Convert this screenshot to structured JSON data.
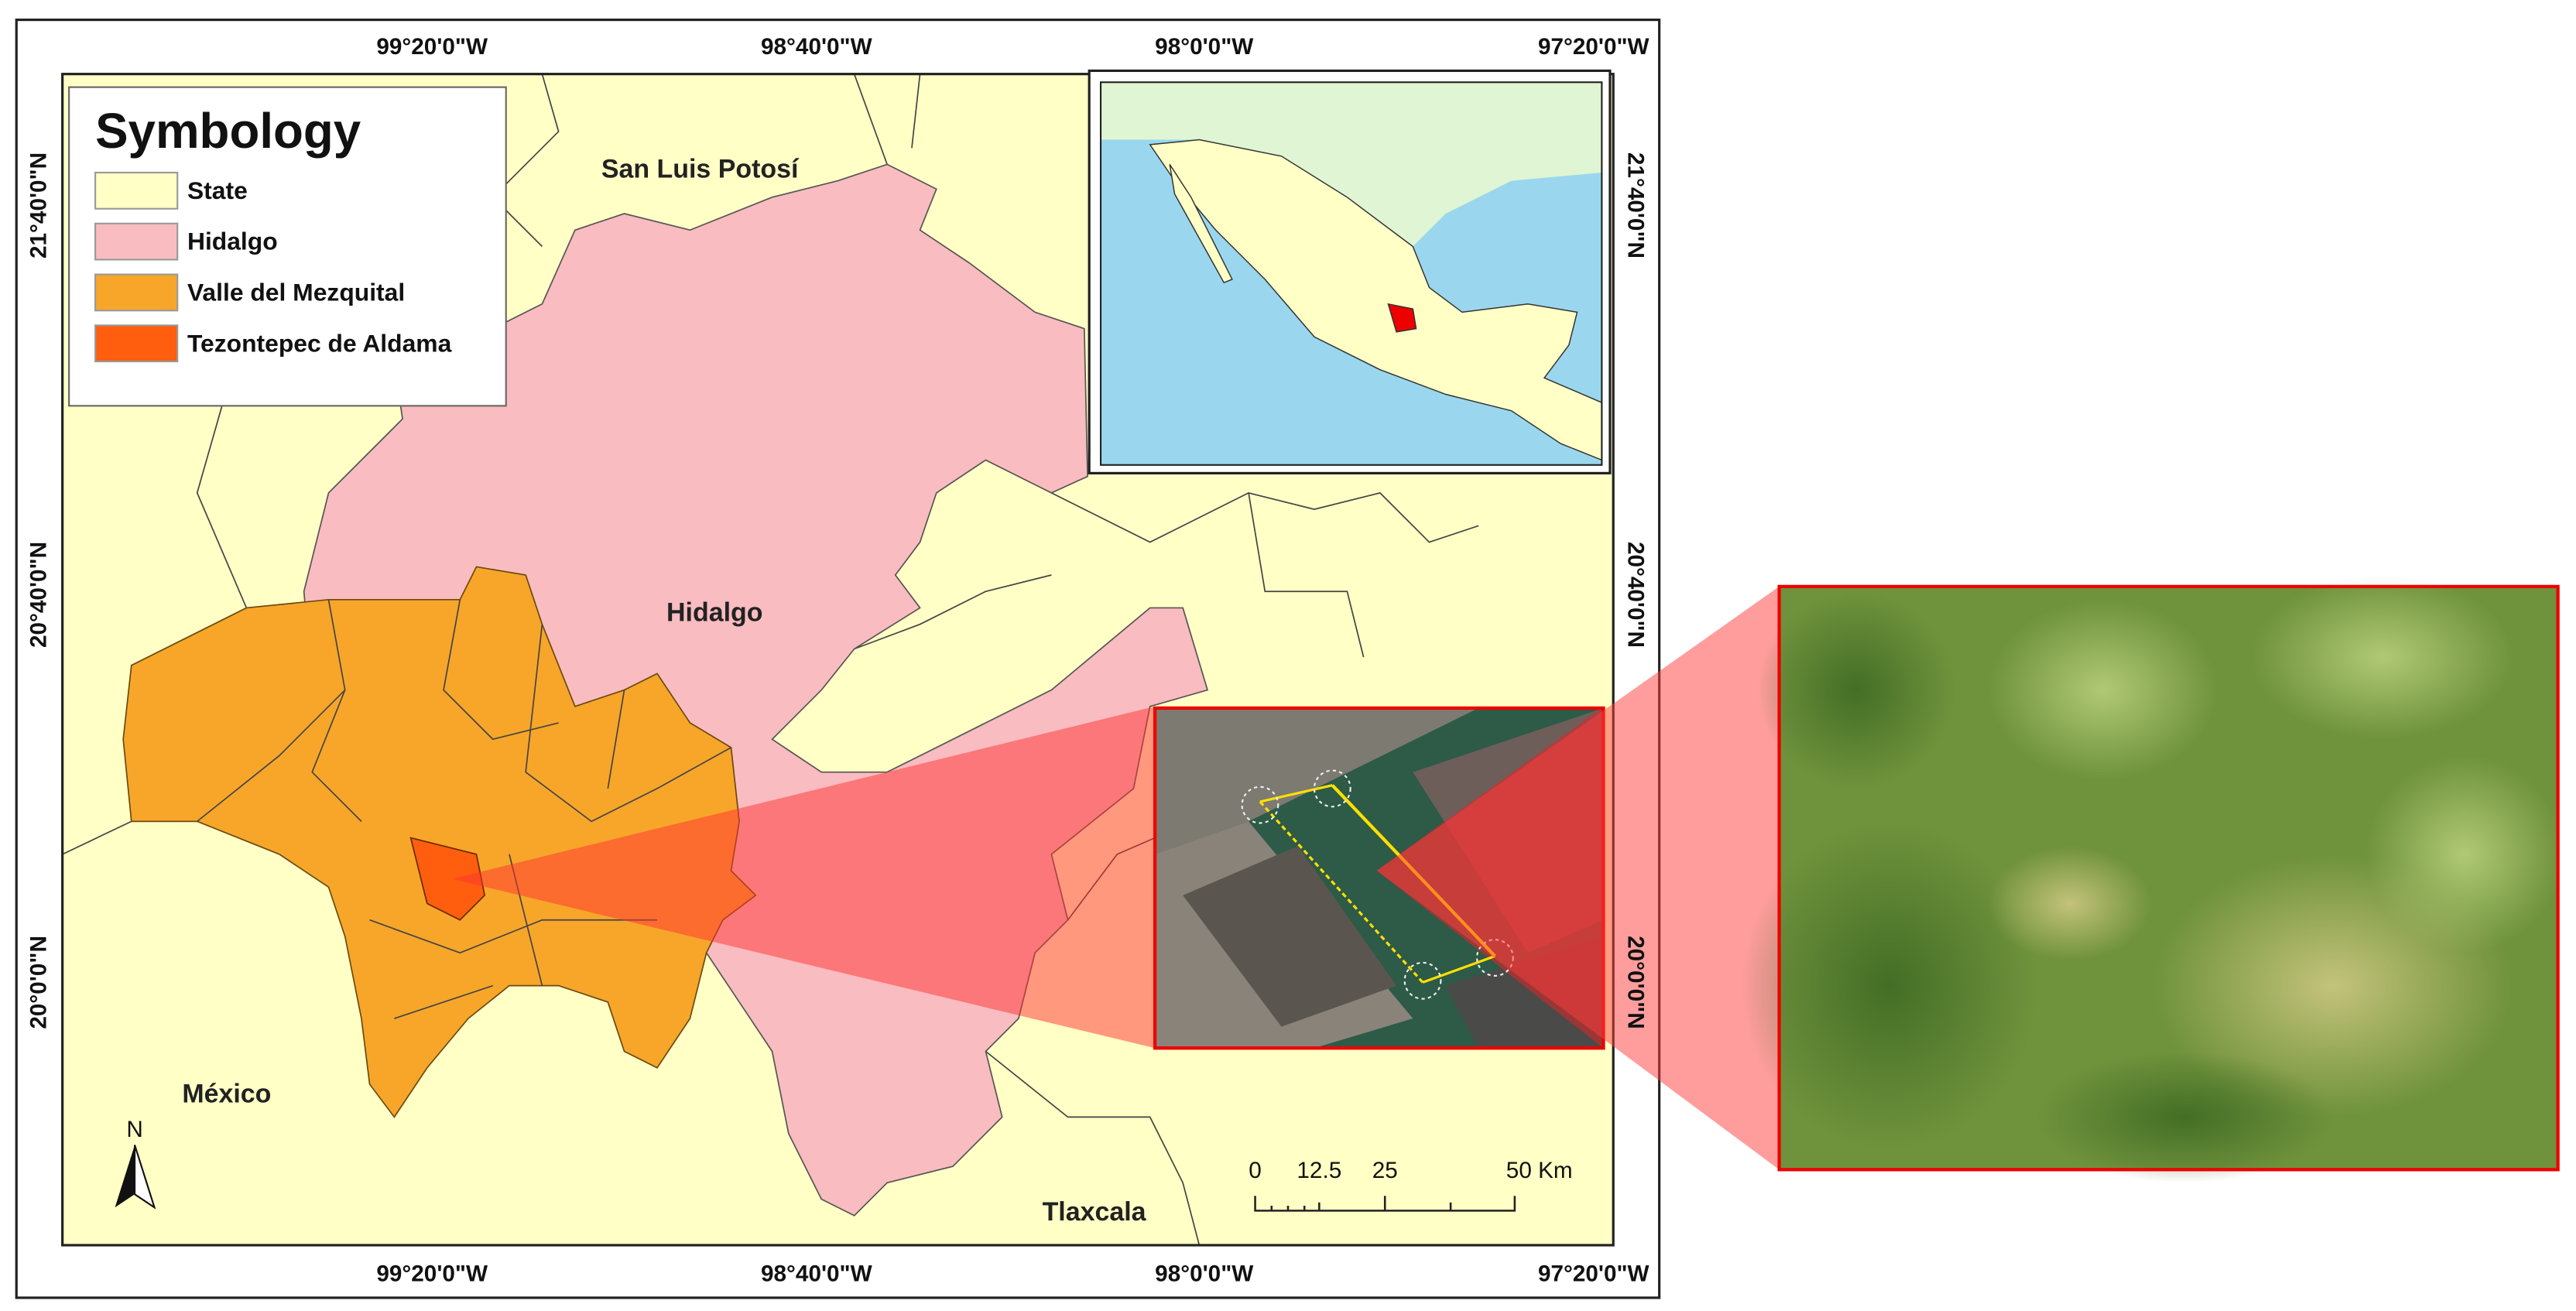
{
  "legend": {
    "title": "Symbology",
    "items": [
      {
        "label": "State",
        "color": "#ffffc6"
      },
      {
        "label": "Hidalgo",
        "color": "#f9bcc0"
      },
      {
        "label": "Valle del Mezquital",
        "color": "#f7a62a"
      },
      {
        "label": "Tezontepec de Aldama",
        "color": "#ff5e0e"
      }
    ]
  },
  "labels": {
    "states": [
      "San Luis Potosí",
      "Hidalgo",
      "México",
      "Tlaxcala"
    ]
  },
  "graticule": {
    "top": [
      "99°20'0\"W",
      "98°40'0\"W",
      "98°0'0\"W",
      "97°20'0\"W"
    ],
    "bottom": [
      "99°20'0\"W",
      "98°40'0\"W",
      "98°0'0\"W",
      "97°20'0\"W"
    ],
    "left": [
      "21°40'0\"N",
      "20°40'0\"N",
      "20°0'0\"N"
    ],
    "right": [
      "21°40'0\"N",
      "20°40'0\"N",
      "20°0'0\"N"
    ]
  },
  "scale_bar": {
    "labels": [
      "0",
      "12.5",
      "25",
      "50 Km"
    ]
  },
  "north_arrow": {
    "label": "N"
  }
}
